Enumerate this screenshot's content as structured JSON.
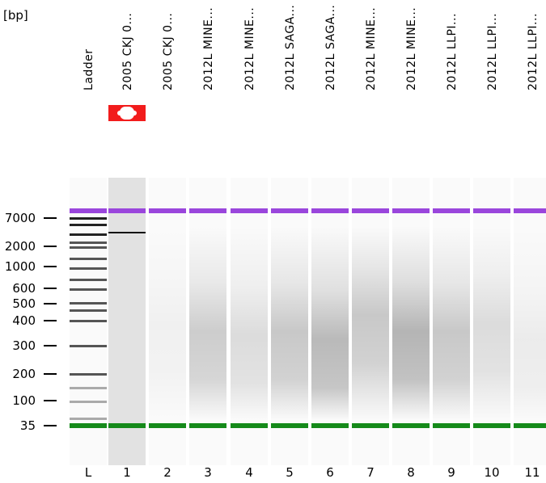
{
  "unit_label": "[bp]",
  "lanes": [
    {
      "label": "Ladder",
      "num": "L"
    },
    {
      "label": "2005 CKJ 0...",
      "num": "1"
    },
    {
      "label": "2005 CKJ 0...",
      "num": "2"
    },
    {
      "label": "2012L MINE...",
      "num": "3"
    },
    {
      "label": "2012L MINE...",
      "num": "4"
    },
    {
      "label": "2012L SAGA...",
      "num": "5"
    },
    {
      "label": "2012L SAGA...",
      "num": "6"
    },
    {
      "label": "2012L MINE...",
      "num": "7"
    },
    {
      "label": "2012L MINE...",
      "num": "8"
    },
    {
      "label": "2012L LLPI...",
      "num": "9"
    },
    {
      "label": "2012L LLPI...",
      "num": "10"
    },
    {
      "label": "2012L LLPI...",
      "num": "11"
    }
  ],
  "sizes": [
    "7000",
    "2000",
    "1000",
    "600",
    "500",
    "400",
    "300",
    "200",
    "100",
    "35"
  ],
  "colors": {
    "upper_marker": "#9a46dc",
    "lower_marker": "#158a1a",
    "flag": "#f21c1c"
  },
  "flag_icon": "warning-flag-icon"
}
